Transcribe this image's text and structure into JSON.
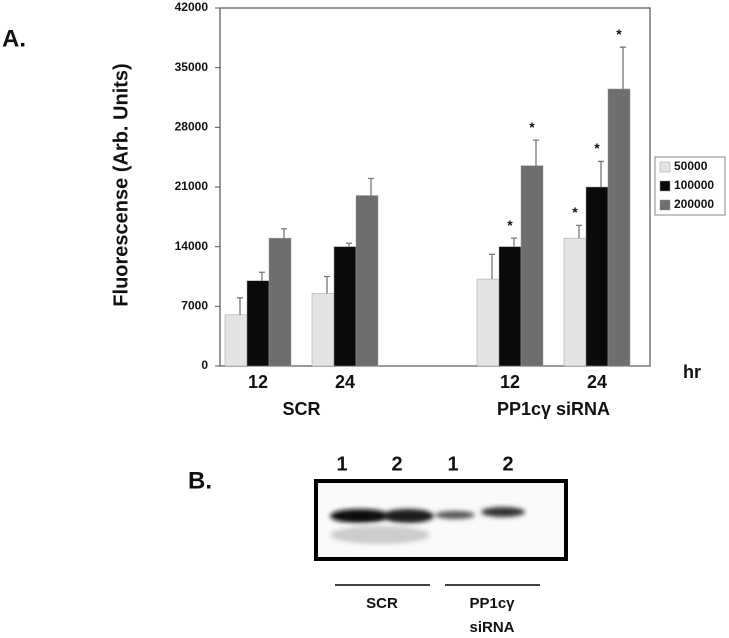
{
  "chart_data": {
    "type": "bar",
    "panel_label": "A.",
    "y_label": "Fluorescense (Arb. Units)",
    "x_unit_label": "hr",
    "groups": [
      {
        "name": "SCR",
        "categories": [
          "12",
          "24"
        ]
      },
      {
        "name": "PP1cγ siRNA",
        "categories": [
          "12",
          "24"
        ]
      }
    ],
    "series": [
      {
        "name": "50000",
        "color": "#e4e4e4",
        "values": [
          6000,
          8500,
          10200,
          15000
        ],
        "errors": [
          2000,
          2000,
          2900,
          1500
        ],
        "markers": [
          null,
          null,
          null,
          "*"
        ]
      },
      {
        "name": "100000",
        "color": "#0a0a0a",
        "values": [
          10000,
          14000,
          14000,
          21000
        ],
        "errors": [
          1000,
          400,
          1000,
          3000
        ],
        "markers": [
          null,
          null,
          "*",
          "*"
        ]
      },
      {
        "name": "200000",
        "color": "#6e6e6e",
        "values": [
          15000,
          20000,
          23500,
          32500
        ],
        "errors": [
          1100,
          2000,
          3000,
          4900
        ],
        "markers": [
          null,
          null,
          "*",
          "*"
        ]
      }
    ],
    "ylim": [
      0,
      42000
    ],
    "yticks": [
      0,
      7000,
      14000,
      21000,
      28000,
      35000,
      42000
    ],
    "legend": "right"
  },
  "blot": {
    "panel_label": "B.",
    "lanes": [
      "1",
      "2",
      "1",
      "2"
    ],
    "groups": [
      {
        "lines": [
          "SCR"
        ]
      },
      {
        "lines": [
          "PP1cγ",
          "siRNA"
        ]
      }
    ]
  }
}
